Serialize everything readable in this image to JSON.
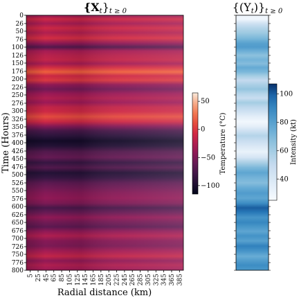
{
  "chart_data": [
    {
      "type": "heatmap",
      "title": "{X_t}_{t≥0}",
      "title_main": "{𝐗",
      "title_sub": "t",
      "title_close": "}",
      "title_range": "t ≥ 0",
      "xlabel": "Radial distance (km)",
      "ylabel": "Time (Hours)",
      "x_ticks": [
        "5",
        "25",
        "45",
        "65",
        "85",
        "105",
        "125",
        "145",
        "165",
        "185",
        "205",
        "225",
        "245",
        "265",
        "285",
        "305",
        "325",
        "345",
        "365",
        "385"
      ],
      "y_ticks": [
        "0",
        "26",
        "50",
        "76",
        "100",
        "126",
        "150",
        "176",
        "200",
        "226",
        "250",
        "276",
        "300",
        "326",
        "350",
        "376",
        "400",
        "426",
        "450",
        "476",
        "500",
        "526",
        "550",
        "576",
        "600",
        "626",
        "650",
        "676",
        "700",
        "726",
        "750",
        "776",
        "800"
      ],
      "y_range": [
        0,
        800
      ],
      "colorbar": {
        "label": "Temperature (°C)",
        "ticks": [
          "50",
          "0",
          "−50",
          "−100"
        ],
        "tick_values": [
          50,
          0,
          -50,
          -100
        ],
        "range": [
          -115,
          65
        ],
        "colormap": "rocket"
      },
      "bands": [
        {
          "t": 0,
          "v": -40
        },
        {
          "t": 12,
          "v": -10
        },
        {
          "t": 26,
          "v": -30
        },
        {
          "t": 40,
          "v": -10
        },
        {
          "t": 55,
          "v": -25
        },
        {
          "t": 72,
          "v": -5
        },
        {
          "t": 88,
          "v": -40
        },
        {
          "t": 100,
          "v": -70
        },
        {
          "t": 112,
          "v": -30
        },
        {
          "t": 126,
          "v": -20
        },
        {
          "t": 140,
          "v": -15
        },
        {
          "t": 152,
          "v": -30
        },
        {
          "t": 164,
          "v": -5
        },
        {
          "t": 178,
          "v": 20
        },
        {
          "t": 190,
          "v": -10
        },
        {
          "t": 204,
          "v": 0
        },
        {
          "t": 218,
          "v": -40
        },
        {
          "t": 232,
          "v": -55
        },
        {
          "t": 246,
          "v": -35
        },
        {
          "t": 260,
          "v": -25
        },
        {
          "t": 274,
          "v": -35
        },
        {
          "t": 288,
          "v": -15
        },
        {
          "t": 302,
          "v": -10
        },
        {
          "t": 318,
          "v": 10
        },
        {
          "t": 334,
          "v": -10
        },
        {
          "t": 348,
          "v": -45
        },
        {
          "t": 362,
          "v": -75
        },
        {
          "t": 378,
          "v": -90
        },
        {
          "t": 394,
          "v": -105
        },
        {
          "t": 410,
          "v": -95
        },
        {
          "t": 428,
          "v": -70
        },
        {
          "t": 446,
          "v": -60
        },
        {
          "t": 462,
          "v": -85
        },
        {
          "t": 478,
          "v": -70
        },
        {
          "t": 494,
          "v": -95
        },
        {
          "t": 510,
          "v": -85
        },
        {
          "t": 526,
          "v": -65
        },
        {
          "t": 542,
          "v": -55
        },
        {
          "t": 558,
          "v": -45
        },
        {
          "t": 574,
          "v": -40
        },
        {
          "t": 590,
          "v": -50
        },
        {
          "t": 604,
          "v": -75
        },
        {
          "t": 618,
          "v": -60
        },
        {
          "t": 634,
          "v": -40
        },
        {
          "t": 650,
          "v": -55
        },
        {
          "t": 664,
          "v": -65
        },
        {
          "t": 678,
          "v": -40
        },
        {
          "t": 692,
          "v": -25
        },
        {
          "t": 708,
          "v": -45
        },
        {
          "t": 724,
          "v": -50
        },
        {
          "t": 740,
          "v": -30
        },
        {
          "t": 756,
          "v": -15
        },
        {
          "t": 770,
          "v": -40
        },
        {
          "t": 784,
          "v": -25
        },
        {
          "t": 800,
          "v": -35
        }
      ]
    },
    {
      "type": "heatmap",
      "title": "{(Y_t)}_{t≥0}",
      "title_main": "{(Y",
      "title_sub": "t",
      "title_close": ")}",
      "title_range": "t ≥ 0",
      "colorbar": {
        "label": "Intensity (kt)",
        "ticks": [
          "100",
          "80",
          "60",
          "40"
        ],
        "tick_values": [
          100,
          80,
          60,
          40
        ],
        "range": [
          25,
          107
        ],
        "colormap": "Blues"
      },
      "bands": [
        {
          "t": 0,
          "v": 30
        },
        {
          "t": 12,
          "v": 28
        },
        {
          "t": 26,
          "v": 45
        },
        {
          "t": 40,
          "v": 55
        },
        {
          "t": 55,
          "v": 62
        },
        {
          "t": 72,
          "v": 70
        },
        {
          "t": 88,
          "v": 80
        },
        {
          "t": 100,
          "v": 82
        },
        {
          "t": 112,
          "v": 74
        },
        {
          "t": 126,
          "v": 66
        },
        {
          "t": 140,
          "v": 72
        },
        {
          "t": 152,
          "v": 68
        },
        {
          "t": 164,
          "v": 76
        },
        {
          "t": 178,
          "v": 70
        },
        {
          "t": 190,
          "v": 60
        },
        {
          "t": 204,
          "v": 50
        },
        {
          "t": 218,
          "v": 58
        },
        {
          "t": 232,
          "v": 64
        },
        {
          "t": 246,
          "v": 55
        },
        {
          "t": 260,
          "v": 48
        },
        {
          "t": 274,
          "v": 60
        },
        {
          "t": 288,
          "v": 52
        },
        {
          "t": 302,
          "v": 45
        },
        {
          "t": 318,
          "v": 35
        },
        {
          "t": 334,
          "v": 28
        },
        {
          "t": 348,
          "v": 34
        },
        {
          "t": 362,
          "v": 45
        },
        {
          "t": 378,
          "v": 55
        },
        {
          "t": 394,
          "v": 48
        },
        {
          "t": 410,
          "v": 40
        },
        {
          "t": 428,
          "v": 32
        },
        {
          "t": 446,
          "v": 42
        },
        {
          "t": 462,
          "v": 58
        },
        {
          "t": 478,
          "v": 70
        },
        {
          "t": 494,
          "v": 78
        },
        {
          "t": 510,
          "v": 72
        },
        {
          "t": 526,
          "v": 68
        },
        {
          "t": 542,
          "v": 76
        },
        {
          "t": 558,
          "v": 82
        },
        {
          "t": 574,
          "v": 78
        },
        {
          "t": 590,
          "v": 88
        },
        {
          "t": 604,
          "v": 100
        },
        {
          "t": 618,
          "v": 95
        },
        {
          "t": 634,
          "v": 85
        },
        {
          "t": 650,
          "v": 90
        },
        {
          "t": 664,
          "v": 84
        },
        {
          "t": 678,
          "v": 78
        },
        {
          "t": 692,
          "v": 86
        },
        {
          "t": 708,
          "v": 80
        },
        {
          "t": 724,
          "v": 92
        },
        {
          "t": 740,
          "v": 85
        },
        {
          "t": 756,
          "v": 75
        },
        {
          "t": 770,
          "v": 82
        },
        {
          "t": 784,
          "v": 88
        },
        {
          "t": 800,
          "v": 84
        }
      ]
    }
  ]
}
